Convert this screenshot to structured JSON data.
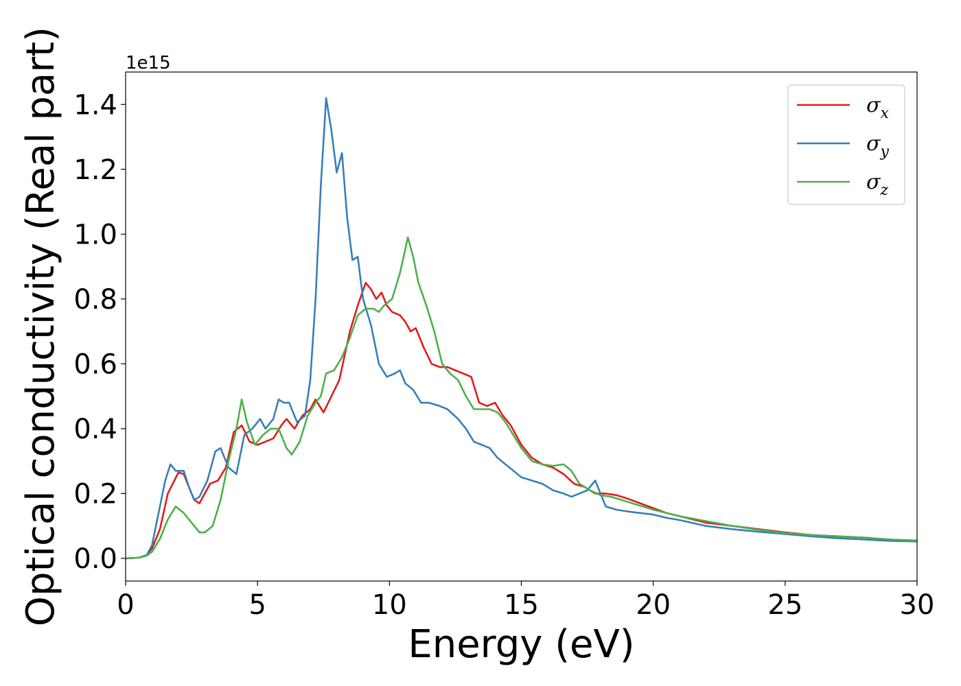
{
  "chart_data": {
    "type": "line",
    "xlabel": "Energy (eV)",
    "ylabel": "Optical conductivity (Real part)",
    "y_offset_label": "1e15",
    "xlim": [
      0,
      30
    ],
    "ylim": [
      -0.07,
      1.5
    ],
    "x_ticks": [
      0,
      5,
      10,
      15,
      20,
      25,
      30
    ],
    "x_tick_labels": [
      "0",
      "5",
      "10",
      "15",
      "20",
      "25",
      "30"
    ],
    "y_ticks": [
      0.0,
      0.2,
      0.4,
      0.6,
      0.8,
      1.0,
      1.2,
      1.4
    ],
    "y_tick_labels": [
      "0.0",
      "0.2",
      "0.4",
      "0.6",
      "0.8",
      "1.0",
      "1.2",
      "1.4"
    ],
    "grid": false,
    "legend_position": "top-right",
    "series": [
      {
        "name": "σx",
        "base": "σ",
        "sub": "x",
        "color": "#e41a1c",
        "points": [
          [
            0,
            0
          ],
          [
            0.5,
            0.002
          ],
          [
            0.8,
            0.01
          ],
          [
            1.0,
            0.03
          ],
          [
            1.3,
            0.09
          ],
          [
            1.6,
            0.2
          ],
          [
            2.0,
            0.265
          ],
          [
            2.2,
            0.26
          ],
          [
            2.4,
            0.22
          ],
          [
            2.6,
            0.18
          ],
          [
            2.8,
            0.17
          ],
          [
            3.0,
            0.2
          ],
          [
            3.2,
            0.23
          ],
          [
            3.5,
            0.24
          ],
          [
            3.8,
            0.28
          ],
          [
            4.1,
            0.39
          ],
          [
            4.4,
            0.41
          ],
          [
            4.7,
            0.36
          ],
          [
            5.0,
            0.35
          ],
          [
            5.3,
            0.36
          ],
          [
            5.6,
            0.37
          ],
          [
            5.9,
            0.41
          ],
          [
            6.1,
            0.43
          ],
          [
            6.4,
            0.4
          ],
          [
            6.7,
            0.44
          ],
          [
            7.0,
            0.46
          ],
          [
            7.2,
            0.49
          ],
          [
            7.5,
            0.45
          ],
          [
            7.8,
            0.5
          ],
          [
            8.1,
            0.55
          ],
          [
            8.5,
            0.7
          ],
          [
            8.8,
            0.78
          ],
          [
            9.1,
            0.85
          ],
          [
            9.3,
            0.83
          ],
          [
            9.5,
            0.8
          ],
          [
            9.7,
            0.82
          ],
          [
            9.9,
            0.78
          ],
          [
            10.1,
            0.76
          ],
          [
            10.4,
            0.75
          ],
          [
            10.6,
            0.73
          ],
          [
            10.8,
            0.7
          ],
          [
            11.0,
            0.71
          ],
          [
            11.3,
            0.65
          ],
          [
            11.6,
            0.6
          ],
          [
            11.9,
            0.59
          ],
          [
            12.2,
            0.59
          ],
          [
            12.5,
            0.58
          ],
          [
            12.8,
            0.57
          ],
          [
            13.1,
            0.56
          ],
          [
            13.4,
            0.48
          ],
          [
            13.7,
            0.47
          ],
          [
            14.0,
            0.48
          ],
          [
            14.3,
            0.44
          ],
          [
            14.6,
            0.41
          ],
          [
            15.0,
            0.35
          ],
          [
            15.4,
            0.31
          ],
          [
            15.8,
            0.29
          ],
          [
            16.2,
            0.28
          ],
          [
            16.6,
            0.26
          ],
          [
            17.0,
            0.23
          ],
          [
            17.4,
            0.22
          ],
          [
            17.8,
            0.2
          ],
          [
            18.2,
            0.2
          ],
          [
            18.6,
            0.195
          ],
          [
            19.0,
            0.185
          ],
          [
            19.5,
            0.17
          ],
          [
            20.0,
            0.155
          ],
          [
            20.5,
            0.14
          ],
          [
            21.0,
            0.13
          ],
          [
            22.0,
            0.11
          ],
          [
            23.0,
            0.1
          ],
          [
            24.0,
            0.09
          ],
          [
            25.0,
            0.08
          ],
          [
            26.0,
            0.072
          ],
          [
            27.0,
            0.068
          ],
          [
            28.0,
            0.064
          ],
          [
            29.0,
            0.058
          ],
          [
            30.0,
            0.055
          ]
        ]
      },
      {
        "name": "σy",
        "base": "σ",
        "sub": "y",
        "color": "#377eb8",
        "points": [
          [
            0,
            0
          ],
          [
            0.5,
            0.002
          ],
          [
            0.8,
            0.01
          ],
          [
            1.0,
            0.04
          ],
          [
            1.2,
            0.12
          ],
          [
            1.5,
            0.24
          ],
          [
            1.7,
            0.29
          ],
          [
            1.9,
            0.27
          ],
          [
            2.2,
            0.27
          ],
          [
            2.4,
            0.22
          ],
          [
            2.6,
            0.18
          ],
          [
            2.8,
            0.19
          ],
          [
            3.1,
            0.24
          ],
          [
            3.4,
            0.33
          ],
          [
            3.6,
            0.34
          ],
          [
            3.9,
            0.28
          ],
          [
            4.2,
            0.26
          ],
          [
            4.5,
            0.38
          ],
          [
            4.8,
            0.4
          ],
          [
            5.1,
            0.43
          ],
          [
            5.3,
            0.4
          ],
          [
            5.6,
            0.43
          ],
          [
            5.8,
            0.49
          ],
          [
            6.0,
            0.48
          ],
          [
            6.2,
            0.48
          ],
          [
            6.5,
            0.42
          ],
          [
            6.8,
            0.44
          ],
          [
            7.0,
            0.55
          ],
          [
            7.2,
            0.8
          ],
          [
            7.4,
            1.15
          ],
          [
            7.6,
            1.42
          ],
          [
            7.8,
            1.32
          ],
          [
            8.0,
            1.19
          ],
          [
            8.2,
            1.25
          ],
          [
            8.4,
            1.05
          ],
          [
            8.6,
            0.92
          ],
          [
            8.8,
            0.93
          ],
          [
            9.0,
            0.8
          ],
          [
            9.3,
            0.72
          ],
          [
            9.6,
            0.6
          ],
          [
            9.9,
            0.56
          ],
          [
            10.2,
            0.57
          ],
          [
            10.4,
            0.58
          ],
          [
            10.6,
            0.54
          ],
          [
            10.9,
            0.52
          ],
          [
            11.2,
            0.48
          ],
          [
            11.5,
            0.48
          ],
          [
            11.9,
            0.47
          ],
          [
            12.2,
            0.46
          ],
          [
            12.6,
            0.43
          ],
          [
            12.9,
            0.4
          ],
          [
            13.2,
            0.36
          ],
          [
            13.5,
            0.35
          ],
          [
            13.8,
            0.34
          ],
          [
            14.1,
            0.31
          ],
          [
            14.4,
            0.29
          ],
          [
            14.7,
            0.27
          ],
          [
            15.0,
            0.25
          ],
          [
            15.4,
            0.24
          ],
          [
            15.8,
            0.23
          ],
          [
            16.2,
            0.21
          ],
          [
            16.6,
            0.2
          ],
          [
            16.9,
            0.19
          ],
          [
            17.2,
            0.2
          ],
          [
            17.5,
            0.21
          ],
          [
            17.8,
            0.24
          ],
          [
            18.0,
            0.2
          ],
          [
            18.2,
            0.16
          ],
          [
            18.6,
            0.15
          ],
          [
            19.0,
            0.145
          ],
          [
            19.5,
            0.14
          ],
          [
            20.0,
            0.135
          ],
          [
            20.5,
            0.125
          ],
          [
            21.0,
            0.118
          ],
          [
            22.0,
            0.1
          ],
          [
            23.0,
            0.09
          ],
          [
            24.0,
            0.082
          ],
          [
            25.0,
            0.075
          ],
          [
            26.0,
            0.068
          ],
          [
            27.0,
            0.062
          ],
          [
            28.0,
            0.058
          ],
          [
            29.0,
            0.054
          ],
          [
            30.0,
            0.052
          ]
        ]
      },
      {
        "name": "σz",
        "base": "σ",
        "sub": "z",
        "color": "#4daf4a",
        "points": [
          [
            0,
            0
          ],
          [
            0.5,
            0.002
          ],
          [
            0.8,
            0.008
          ],
          [
            1.0,
            0.02
          ],
          [
            1.3,
            0.06
          ],
          [
            1.6,
            0.12
          ],
          [
            1.9,
            0.16
          ],
          [
            2.2,
            0.14
          ],
          [
            2.5,
            0.11
          ],
          [
            2.8,
            0.08
          ],
          [
            3.0,
            0.08
          ],
          [
            3.3,
            0.1
          ],
          [
            3.6,
            0.18
          ],
          [
            3.9,
            0.3
          ],
          [
            4.2,
            0.4
          ],
          [
            4.4,
            0.49
          ],
          [
            4.6,
            0.42
          ],
          [
            4.9,
            0.35
          ],
          [
            5.2,
            0.38
          ],
          [
            5.5,
            0.4
          ],
          [
            5.8,
            0.4
          ],
          [
            6.1,
            0.34
          ],
          [
            6.3,
            0.32
          ],
          [
            6.6,
            0.36
          ],
          [
            6.9,
            0.44
          ],
          [
            7.2,
            0.48
          ],
          [
            7.4,
            0.5
          ],
          [
            7.6,
            0.57
          ],
          [
            7.9,
            0.58
          ],
          [
            8.2,
            0.62
          ],
          [
            8.5,
            0.68
          ],
          [
            8.8,
            0.75
          ],
          [
            9.1,
            0.77
          ],
          [
            9.4,
            0.77
          ],
          [
            9.6,
            0.76
          ],
          [
            9.8,
            0.78
          ],
          [
            10.1,
            0.8
          ],
          [
            10.4,
            0.88
          ],
          [
            10.7,
            0.99
          ],
          [
            10.9,
            0.93
          ],
          [
            11.1,
            0.85
          ],
          [
            11.4,
            0.78
          ],
          [
            11.7,
            0.7
          ],
          [
            12.0,
            0.6
          ],
          [
            12.3,
            0.57
          ],
          [
            12.6,
            0.55
          ],
          [
            12.9,
            0.5
          ],
          [
            13.2,
            0.46
          ],
          [
            13.5,
            0.46
          ],
          [
            13.8,
            0.46
          ],
          [
            14.1,
            0.45
          ],
          [
            14.4,
            0.42
          ],
          [
            14.7,
            0.38
          ],
          [
            15.0,
            0.34
          ],
          [
            15.4,
            0.3
          ],
          [
            15.8,
            0.29
          ],
          [
            16.2,
            0.285
          ],
          [
            16.6,
            0.29
          ],
          [
            16.9,
            0.27
          ],
          [
            17.2,
            0.23
          ],
          [
            17.6,
            0.21
          ],
          [
            18.0,
            0.195
          ],
          [
            18.4,
            0.19
          ],
          [
            18.8,
            0.18
          ],
          [
            19.2,
            0.17
          ],
          [
            19.6,
            0.16
          ],
          [
            20.0,
            0.15
          ],
          [
            20.5,
            0.14
          ],
          [
            21.0,
            0.13
          ],
          [
            22.0,
            0.115
          ],
          [
            23.0,
            0.1
          ],
          [
            24.0,
            0.088
          ],
          [
            25.0,
            0.078
          ],
          [
            26.0,
            0.072
          ],
          [
            27.0,
            0.068
          ],
          [
            28.0,
            0.064
          ],
          [
            29.0,
            0.058
          ],
          [
            30.0,
            0.055
          ]
        ]
      }
    ]
  }
}
